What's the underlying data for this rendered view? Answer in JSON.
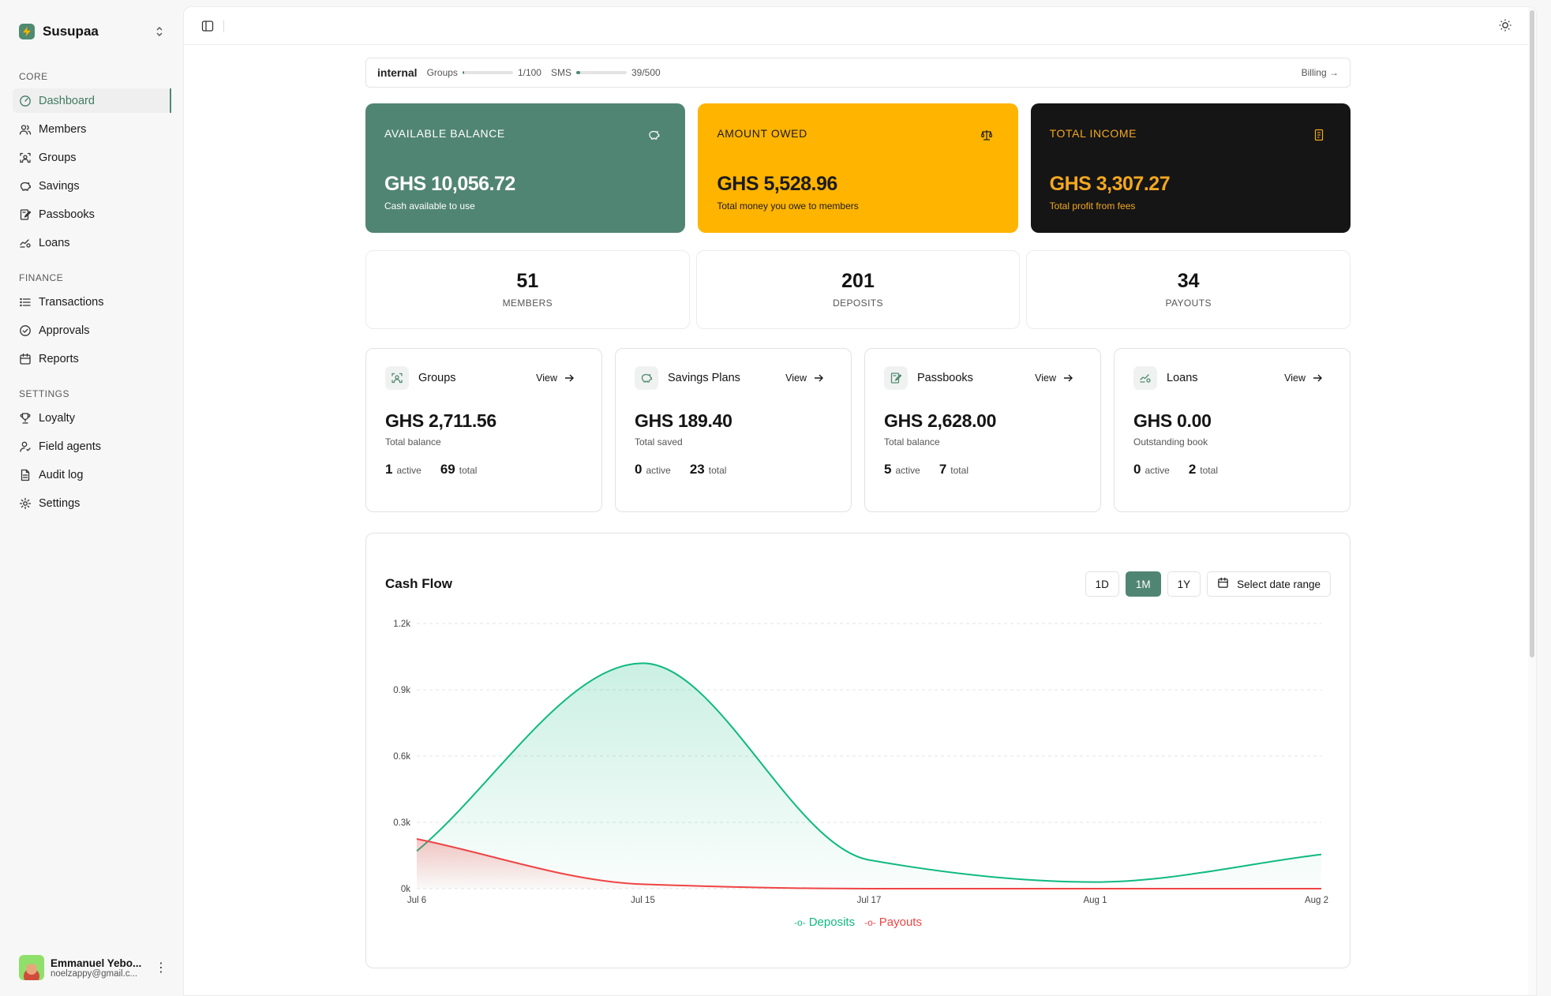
{
  "brand": {
    "name": "Susupaa"
  },
  "sidebar": {
    "sections": [
      {
        "label": "CORE",
        "items": [
          {
            "label": "Dashboard",
            "icon": "dashboard-icon",
            "active": true
          },
          {
            "label": "Members",
            "icon": "users-icon"
          },
          {
            "label": "Groups",
            "icon": "groups-icon"
          },
          {
            "label": "Savings",
            "icon": "piggy-bank-icon"
          },
          {
            "label": "Passbooks",
            "icon": "passbook-icon"
          },
          {
            "label": "Loans",
            "icon": "loans-icon"
          }
        ]
      },
      {
        "label": "FINANCE",
        "items": [
          {
            "label": "Transactions",
            "icon": "list-icon"
          },
          {
            "label": "Approvals",
            "icon": "check-circle-icon"
          },
          {
            "label": "Reports",
            "icon": "calendar-icon"
          }
        ]
      },
      {
        "label": "SETTINGS",
        "items": [
          {
            "label": "Loyalty",
            "icon": "trophy-icon"
          },
          {
            "label": "Field agents",
            "icon": "agent-icon"
          },
          {
            "label": "Audit log",
            "icon": "audit-icon"
          },
          {
            "label": "Settings",
            "icon": "gear-icon"
          }
        ]
      }
    ]
  },
  "user": {
    "name": "Emmanuel Yebo...",
    "email": "noelzappy@gmail.c..."
  },
  "plan": {
    "name": "internal",
    "groups_label": "Groups",
    "groups_usage": "1/100",
    "groups_fraction": 0.01,
    "sms_label": "SMS",
    "sms_usage": "39/500",
    "sms_fraction": 0.078,
    "billing_label": "Billing →"
  },
  "hero": {
    "available": {
      "label": "AVAILABLE BALANCE",
      "value": "GHS 10,056.72",
      "sub": "Cash available to use",
      "icon": "piggy-bank-icon"
    },
    "owed": {
      "label": "AMOUNT OWED",
      "value": "GHS 5,528.96",
      "sub": "Total money you owe to members",
      "icon": "scale-icon"
    },
    "income": {
      "label": "TOTAL INCOME",
      "value": "GHS 3,307.27",
      "sub": "Total profit from fees",
      "icon": "receipt-icon"
    }
  },
  "stats": [
    {
      "value": "51",
      "label": "MEMBERS"
    },
    {
      "value": "201",
      "label": "DEPOSITS"
    },
    {
      "value": "34",
      "label": "PAYOUTS"
    }
  ],
  "cards": [
    {
      "title": "Groups",
      "view": "View",
      "value": "GHS 2,711.56",
      "sub": "Total balance",
      "active": "1",
      "active_label": "active",
      "total": "69",
      "total_label": "total",
      "icon": "groups-icon"
    },
    {
      "title": "Savings Plans",
      "view": "View",
      "value": "GHS 189.40",
      "sub": "Total saved",
      "active": "0",
      "active_label": "active",
      "total": "23",
      "total_label": "total",
      "icon": "piggy-bank-icon"
    },
    {
      "title": "Passbooks",
      "view": "View",
      "value": "GHS 2,628.00",
      "sub": "Total balance",
      "active": "5",
      "active_label": "active",
      "total": "7",
      "total_label": "total",
      "icon": "passbook-icon"
    },
    {
      "title": "Loans",
      "view": "View",
      "value": "GHS 0.00",
      "sub": "Outstanding book",
      "active": "0",
      "active_label": "active",
      "total": "2",
      "total_label": "total",
      "icon": "loans-icon"
    }
  ],
  "cashflow": {
    "title": "Cash Flow",
    "ranges": [
      "1D",
      "1M",
      "1Y"
    ],
    "active_range": "1M",
    "date_range_label": "Select date range"
  },
  "chart_data": {
    "type": "area",
    "title": "Cash Flow",
    "categories": [
      "Jul 6",
      "Jul 15",
      "Jul 17",
      "Aug 1",
      "Aug 2"
    ],
    "yticks": [
      "0k",
      "0.3k",
      "0.6k",
      "0.9k",
      "1.2k"
    ],
    "ylim": [
      0,
      1200
    ],
    "grid": true,
    "legend": "bottom",
    "series": [
      {
        "name": "Deposits",
        "color": "#10b981",
        "values": [
          170,
          1020,
          130,
          30,
          155
        ]
      },
      {
        "name": "Payouts",
        "color": "#ef4444",
        "values": [
          225,
          20,
          0,
          0,
          0
        ]
      }
    ]
  }
}
